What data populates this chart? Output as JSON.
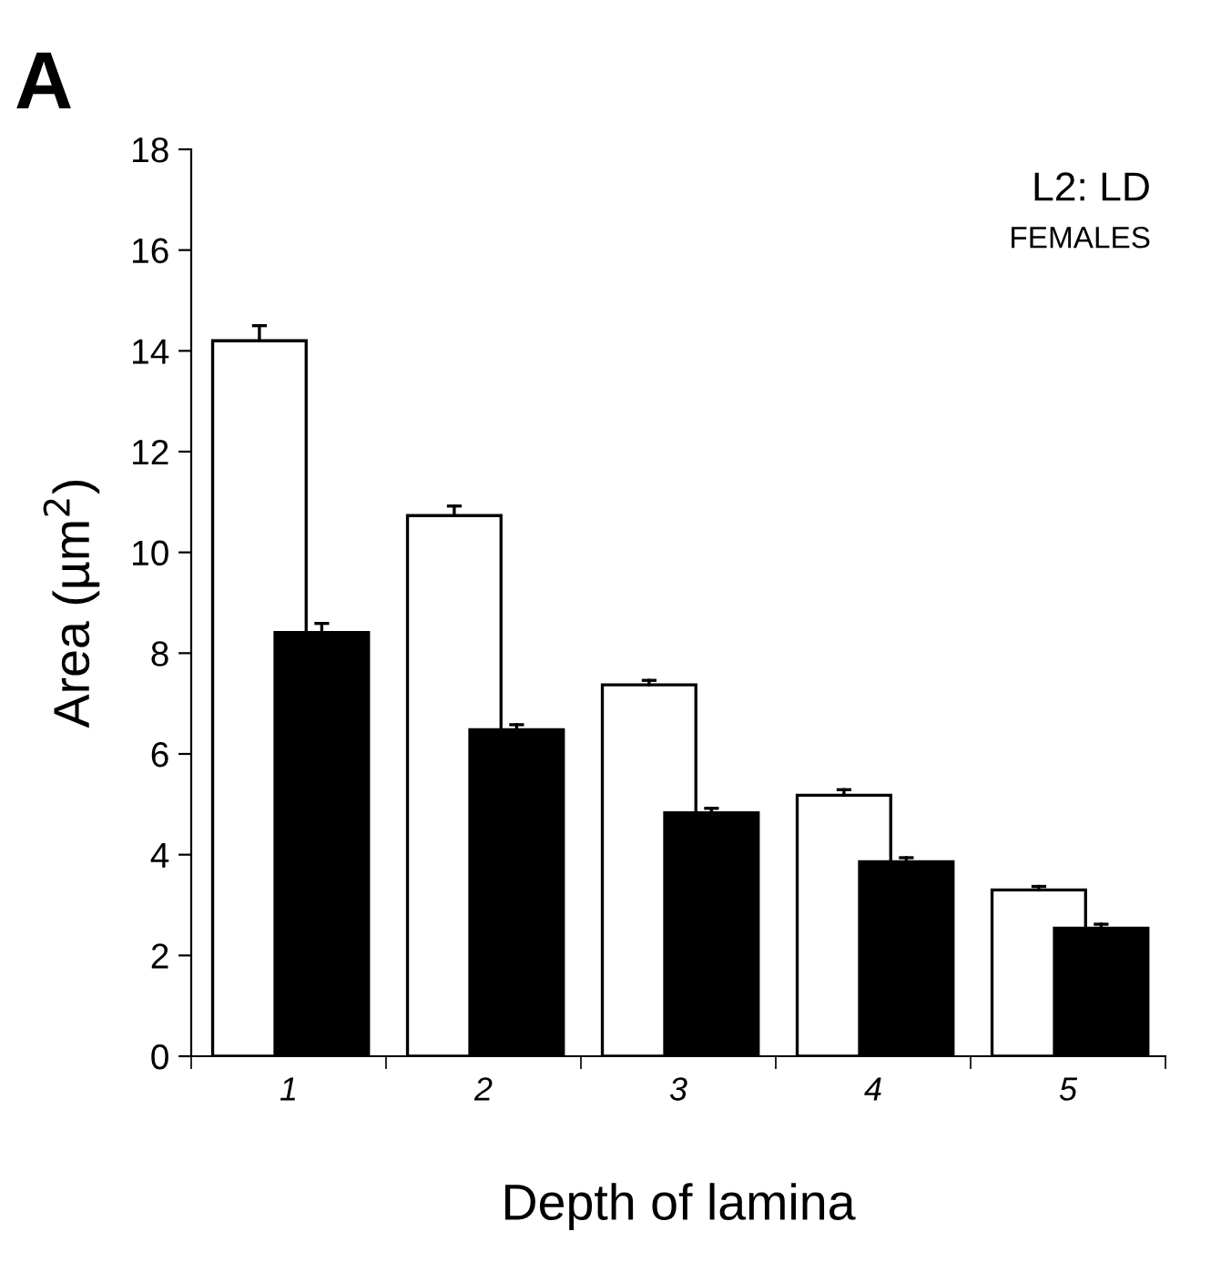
{
  "chart_data": {
    "type": "bar",
    "xlabel": "Depth of lamina",
    "ylabel": "Area (µm$^{2}$)",
    "categories": [
      "1",
      "2",
      "3",
      "4",
      "5"
    ],
    "series": [
      {
        "color": "#ffffff",
        "values": [
          14.2,
          10.73,
          7.37,
          5.18,
          3.3
        ],
        "errors": [
          [
            14.2,
            14.5
          ],
          [
            10.73,
            10.92
          ],
          [
            7.37,
            7.46
          ],
          [
            5.18,
            5.29
          ],
          [
            3.3,
            3.37
          ]
        ]
      },
      {
        "color": "#000000",
        "values": [
          8.41,
          6.48,
          4.83,
          3.86,
          2.54
        ],
        "errors": [
          [
            8.41,
            8.59
          ],
          [
            6.48,
            6.58
          ],
          [
            4.83,
            4.92
          ],
          [
            3.86,
            3.94
          ],
          [
            2.54,
            2.62
          ]
        ]
      }
    ],
    "ylim": [
      0,
      18
    ],
    "yticks": [
      0,
      2,
      4,
      6,
      8,
      10,
      12,
      14,
      16,
      18
    ],
    "grid": false,
    "legend": false,
    "annotations": [
      "A",
      "L2: LD",
      "FEMALES"
    ]
  }
}
